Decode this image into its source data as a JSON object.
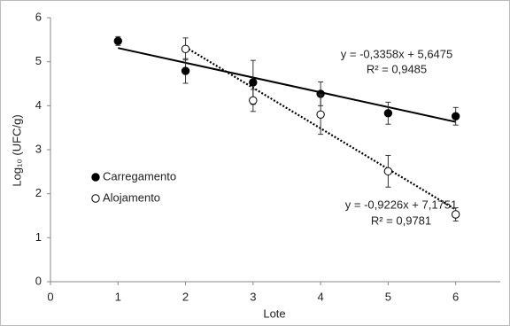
{
  "chart_data": {
    "type": "scatter",
    "x_label": "Lote",
    "y_label": "Log₁₀ (UFC/g)",
    "xlim": [
      0,
      6.66
    ],
    "xticks": [
      0,
      1,
      2,
      3,
      4,
      5,
      6
    ],
    "ylim": [
      0,
      6
    ],
    "yticks": [
      0,
      1,
      2,
      3,
      4,
      5,
      6
    ],
    "grid": false,
    "legend": "left",
    "series": [
      {
        "name": "Carregamento",
        "color": "#000000",
        "marker": "filled",
        "x": [
          1,
          2,
          3,
          4,
          5,
          6
        ],
        "values": [
          5.47,
          4.79,
          4.53,
          4.27,
          3.83,
          3.76
        ],
        "errors": [
          0.1,
          0.28,
          0.5,
          0.27,
          0.25,
          0.2
        ],
        "trendline": {
          "slope": -0.3358,
          "intercept": 5.6475,
          "style": "solid",
          "label": "y = -0,3358x + 5,6475",
          "r2_label": "R² = 0,9485"
        }
      },
      {
        "name": "Alojamento",
        "color": "#000000",
        "marker": "open",
        "x": [
          2,
          3,
          4,
          5,
          6
        ],
        "values": [
          5.29,
          4.12,
          3.8,
          2.51,
          1.53
        ],
        "errors": [
          0.25,
          0.25,
          0.45,
          0.36,
          0.15
        ],
        "trendline": {
          "slope": -0.9226,
          "intercept": 7.1751,
          "style": "dotted",
          "label": "y = -0,9226x + 7,1751",
          "r2_label": "R² = 0,9781"
        }
      }
    ]
  }
}
